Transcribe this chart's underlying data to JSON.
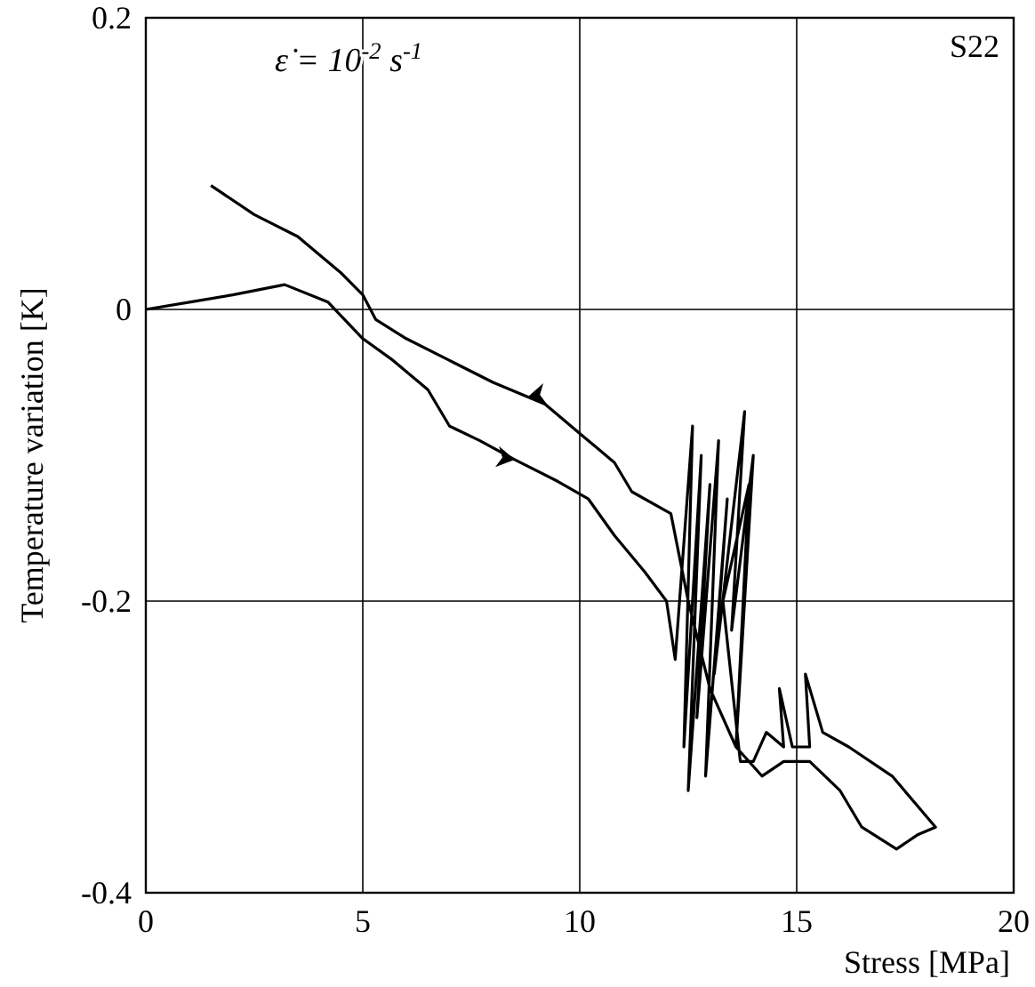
{
  "chart_data": {
    "type": "line",
    "xlabel": "Stress  [MPa]",
    "ylabel": "Temperature variation  [K]",
    "annotations": [
      "S22",
      "ε̇ = 10$^{-2}$ s$^{-1}$"
    ],
    "xlim": [
      0,
      20
    ],
    "ylim": [
      -0.4,
      0.2
    ],
    "xticks": [
      0,
      5,
      10,
      15,
      20
    ],
    "yticks": [
      -0.4,
      -0.2,
      0,
      0.2
    ],
    "grid": true,
    "marker": "none",
    "line_style": "solid",
    "series": [
      {
        "color": "#000000",
        "x": [
          0,
          1,
          2,
          3.2,
          4.2,
          5,
          5.7,
          6.5,
          7,
          7.7,
          8.5,
          9.5,
          10.2,
          10.8,
          11.5,
          12,
          12.2,
          12.6,
          12.4,
          12.8,
          12.5,
          13.0,
          12.7,
          13.2,
          12.9,
          13.4,
          13.1,
          13.8,
          13.5,
          14.0,
          13.6,
          13.9,
          13.3,
          13.7,
          14.0,
          14.3,
          14.7,
          14.6,
          14.9,
          15.3,
          15.2,
          15.6,
          16.2,
          17.2,
          18.2,
          17.8,
          17.3,
          16.5,
          16,
          15.3,
          14.7,
          14.2,
          13.6,
          13,
          12.5,
          12.1,
          11.2,
          10.8,
          10,
          9.2,
          8,
          7,
          6,
          5.3,
          5,
          4.5,
          3.5,
          2.5,
          1.5
        ],
        "values": [
          0,
          0.005,
          0.01,
          0.017,
          0.005,
          -0.02,
          -0.035,
          -0.055,
          -0.08,
          -0.09,
          -0.103,
          -0.118,
          -0.13,
          -0.155,
          -0.18,
          -0.2,
          -0.24,
          -0.08,
          -0.3,
          -0.1,
          -0.33,
          -0.12,
          -0.28,
          -0.09,
          -0.32,
          -0.13,
          -0.25,
          -0.07,
          -0.22,
          -0.1,
          -0.3,
          -0.12,
          -0.2,
          -0.31,
          -0.31,
          -0.29,
          -0.3,
          -0.26,
          -0.3,
          -0.3,
          -0.25,
          -0.29,
          -0.3,
          -0.32,
          -0.355,
          -0.36,
          -0.37,
          -0.355,
          -0.33,
          -0.31,
          -0.31,
          -0.32,
          -0.3,
          -0.26,
          -0.2,
          -0.14,
          -0.125,
          -0.105,
          -0.085,
          -0.065,
          -0.05,
          -0.035,
          -0.02,
          -0.007,
          0.01,
          0.025,
          0.05,
          0.065,
          0.085
        ]
      }
    ]
  }
}
